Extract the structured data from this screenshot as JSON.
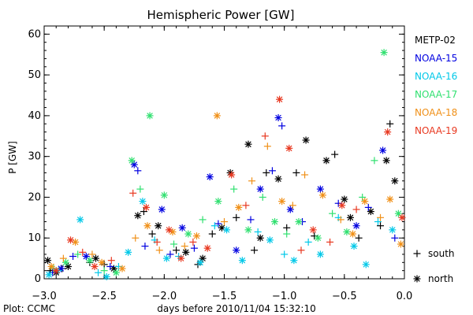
{
  "chart_data": {
    "type": "scatter",
    "title": "Hemispheric Power [GW]",
    "xlabel": "days before 2010/11/04 15:32:10",
    "ylabel": "P [GW]",
    "xlim": [
      -3.0,
      0.0
    ],
    "ylim": [
      0,
      62
    ],
    "xticks": [
      -3.0,
      -2.5,
      -2.0,
      -1.5,
      -1.0,
      -0.5,
      0.0
    ],
    "xtick_labels": [
      "−3.0",
      "−2.5",
      "−2.0",
      "−1.5",
      "−1.0",
      "−0.5",
      "0.0"
    ],
    "yticks": [
      0,
      10,
      20,
      30,
      40,
      50,
      60
    ],
    "footer": "Plot: CCMC",
    "marker_legend": [
      {
        "symbol": "+",
        "label": "south"
      },
      {
        "symbol": "*",
        "label": "north"
      }
    ],
    "series": [
      {
        "name": "METP-02",
        "color": "#000000",
        "points": [
          [
            -2.97,
            4.5,
            "*"
          ],
          [
            -2.95,
            2.0,
            "+"
          ],
          [
            -2.9,
            1.5,
            "*"
          ],
          [
            -2.85,
            2.5,
            "+"
          ],
          [
            -2.8,
            3.0,
            "*"
          ],
          [
            -2.62,
            4.0,
            "+"
          ],
          [
            -2.57,
            5.0,
            "*"
          ],
          [
            -2.5,
            3.5,
            "+"
          ],
          [
            -2.42,
            2.5,
            "*"
          ],
          [
            -2.22,
            15.5,
            "*"
          ],
          [
            -2.17,
            16.5,
            "+"
          ],
          [
            -2.1,
            11.0,
            "+"
          ],
          [
            -2.05,
            13.0,
            "*"
          ],
          [
            -1.9,
            7.0,
            "+"
          ],
          [
            -1.82,
            6.5,
            "*"
          ],
          [
            -1.72,
            3.5,
            "+"
          ],
          [
            -1.68,
            5.0,
            "*"
          ],
          [
            -1.6,
            11.0,
            "+"
          ],
          [
            -1.52,
            12.5,
            "*"
          ],
          [
            -1.45,
            26.0,
            "*"
          ],
          [
            -1.4,
            15.0,
            "+"
          ],
          [
            -1.3,
            33.0,
            "*"
          ],
          [
            -1.25,
            7.0,
            "+"
          ],
          [
            -1.2,
            10.0,
            "*"
          ],
          [
            -1.15,
            26.0,
            "+"
          ],
          [
            -1.05,
            24.5,
            "*"
          ],
          [
            -0.98,
            12.5,
            "+"
          ],
          [
            -0.9,
            26.0,
            "+"
          ],
          [
            -0.82,
            34.0,
            "*"
          ],
          [
            -0.75,
            10.5,
            "+"
          ],
          [
            -0.65,
            29.0,
            "*"
          ],
          [
            -0.58,
            30.5,
            "+"
          ],
          [
            -0.5,
            19.5,
            "*"
          ],
          [
            -0.45,
            15.0,
            "*"
          ],
          [
            -0.38,
            10.0,
            "+"
          ],
          [
            -0.28,
            16.5,
            "*"
          ],
          [
            -0.2,
            13.0,
            "+"
          ],
          [
            -0.15,
            29.0,
            "*"
          ],
          [
            -0.12,
            38.0,
            "+"
          ],
          [
            -0.08,
            24.0,
            "*"
          ]
        ]
      },
      {
        "name": "NOAA-15",
        "color": "#0000e0",
        "points": [
          [
            -2.93,
            1.5,
            "+"
          ],
          [
            -2.86,
            2.5,
            "*"
          ],
          [
            -2.76,
            5.5,
            "+"
          ],
          [
            -2.65,
            5.5,
            "*"
          ],
          [
            -2.45,
            3.0,
            "+"
          ],
          [
            -2.25,
            28.0,
            "*"
          ],
          [
            -2.22,
            26.5,
            "+"
          ],
          [
            -2.16,
            8.0,
            "+"
          ],
          [
            -2.02,
            17.0,
            "*"
          ],
          [
            -1.95,
            6.0,
            "+"
          ],
          [
            -1.85,
            12.5,
            "*"
          ],
          [
            -1.75,
            7.5,
            "+"
          ],
          [
            -1.62,
            25.0,
            "*"
          ],
          [
            -1.55,
            13.5,
            "+"
          ],
          [
            -1.4,
            7.0,
            "*"
          ],
          [
            -1.28,
            14.5,
            "+"
          ],
          [
            -1.2,
            22.0,
            "*"
          ],
          [
            -1.1,
            26.5,
            "+"
          ],
          [
            -1.05,
            39.5,
            "*"
          ],
          [
            -1.02,
            37.5,
            "+"
          ],
          [
            -0.95,
            17.0,
            "*"
          ],
          [
            -0.85,
            14.0,
            "+"
          ],
          [
            -0.7,
            22.0,
            "*"
          ],
          [
            -0.55,
            18.5,
            "+"
          ],
          [
            -0.4,
            13.0,
            "*"
          ],
          [
            -0.3,
            17.5,
            "+"
          ],
          [
            -0.18,
            31.5,
            "*"
          ],
          [
            -0.08,
            10.0,
            "+"
          ]
        ]
      },
      {
        "name": "NOAA-16",
        "color": "#00c8e8",
        "points": [
          [
            -2.96,
            1.0,
            "*"
          ],
          [
            -2.88,
            2.0,
            "+"
          ],
          [
            -2.7,
            14.5,
            "*"
          ],
          [
            -2.55,
            1.5,
            "+"
          ],
          [
            -2.48,
            0.5,
            "*"
          ],
          [
            -2.38,
            3.0,
            "+"
          ],
          [
            -2.3,
            6.5,
            "*"
          ],
          [
            -2.18,
            19.0,
            "*"
          ],
          [
            -2.08,
            9.5,
            "+"
          ],
          [
            -1.98,
            5.0,
            "*"
          ],
          [
            -1.88,
            5.5,
            "+"
          ],
          [
            -1.7,
            4.0,
            "*"
          ],
          [
            -1.58,
            13.0,
            "+"
          ],
          [
            -1.48,
            12.0,
            "*"
          ],
          [
            -1.35,
            4.5,
            "*"
          ],
          [
            -1.22,
            11.5,
            "+"
          ],
          [
            -1.12,
            9.5,
            "*"
          ],
          [
            -1.0,
            6.0,
            "+"
          ],
          [
            -0.92,
            4.5,
            "*"
          ],
          [
            -0.8,
            9.0,
            "+"
          ],
          [
            -0.7,
            6.0,
            "*"
          ],
          [
            -0.55,
            15.0,
            "+"
          ],
          [
            -0.42,
            8.0,
            "*"
          ],
          [
            -0.32,
            3.5,
            "*"
          ],
          [
            -0.22,
            14.0,
            "+"
          ],
          [
            -0.1,
            12.0,
            "*"
          ]
        ]
      },
      {
        "name": "NOAA-17",
        "color": "#30e070",
        "points": [
          [
            -2.92,
            2.5,
            "+"
          ],
          [
            -2.82,
            4.0,
            "*"
          ],
          [
            -2.72,
            6.0,
            "+"
          ],
          [
            -2.62,
            4.5,
            "*"
          ],
          [
            -2.5,
            2.0,
            "+"
          ],
          [
            -2.4,
            1.5,
            "*"
          ],
          [
            -2.27,
            29.0,
            "*"
          ],
          [
            -2.2,
            22.0,
            "+"
          ],
          [
            -2.12,
            40.0,
            "*"
          ],
          [
            -2.0,
            20.5,
            "*"
          ],
          [
            -1.92,
            8.5,
            "+"
          ],
          [
            -1.8,
            11.0,
            "*"
          ],
          [
            -1.68,
            14.5,
            "+"
          ],
          [
            -1.55,
            19.0,
            "*"
          ],
          [
            -1.42,
            22.0,
            "+"
          ],
          [
            -1.3,
            12.0,
            "*"
          ],
          [
            -1.18,
            20.0,
            "+"
          ],
          [
            -1.08,
            14.0,
            "*"
          ],
          [
            -0.98,
            11.0,
            "+"
          ],
          [
            -0.88,
            14.0,
            "*"
          ],
          [
            -0.72,
            10.0,
            "*"
          ],
          [
            -0.6,
            16.0,
            "+"
          ],
          [
            -0.48,
            11.5,
            "*"
          ],
          [
            -0.35,
            20.0,
            "+"
          ],
          [
            -0.25,
            29.0,
            "+"
          ],
          [
            -0.17,
            55.5,
            "*"
          ],
          [
            -0.05,
            16.0,
            "*"
          ]
        ]
      },
      {
        "name": "NOAA-18",
        "color": "#f09018",
        "points": [
          [
            -2.94,
            3.0,
            "*"
          ],
          [
            -2.84,
            5.0,
            "+"
          ],
          [
            -2.74,
            9.0,
            "*"
          ],
          [
            -2.6,
            6.0,
            "+"
          ],
          [
            -2.52,
            4.0,
            "*"
          ],
          [
            -2.35,
            2.5,
            "*"
          ],
          [
            -2.24,
            10.0,
            "+"
          ],
          [
            -2.14,
            13.0,
            "*"
          ],
          [
            -2.04,
            7.0,
            "+"
          ],
          [
            -1.93,
            11.5,
            "*"
          ],
          [
            -1.83,
            8.0,
            "+"
          ],
          [
            -1.73,
            10.5,
            "*"
          ],
          [
            -1.56,
            40.0,
            "*"
          ],
          [
            -1.5,
            14.0,
            "+"
          ],
          [
            -1.38,
            17.5,
            "*"
          ],
          [
            -1.27,
            24.0,
            "+"
          ],
          [
            -1.14,
            32.5,
            "+"
          ],
          [
            -1.02,
            19.0,
            "*"
          ],
          [
            -0.93,
            18.0,
            "+"
          ],
          [
            -0.83,
            25.5,
            "+"
          ],
          [
            -0.68,
            20.5,
            "*"
          ],
          [
            -0.53,
            14.5,
            "+"
          ],
          [
            -0.43,
            11.0,
            "*"
          ],
          [
            -0.33,
            19.0,
            "*"
          ],
          [
            -0.2,
            15.0,
            "+"
          ],
          [
            -0.12,
            19.5,
            "*"
          ],
          [
            -0.03,
            8.5,
            "*"
          ]
        ]
      },
      {
        "name": "NOAA-19",
        "color": "#e83820",
        "points": [
          [
            -2.9,
            2.0,
            "*"
          ],
          [
            -2.78,
            9.5,
            "*"
          ],
          [
            -2.68,
            6.5,
            "+"
          ],
          [
            -2.58,
            3.0,
            "*"
          ],
          [
            -2.44,
            4.5,
            "+"
          ],
          [
            -2.26,
            21.0,
            "+"
          ],
          [
            -2.15,
            17.5,
            "*"
          ],
          [
            -2.06,
            9.0,
            "+"
          ],
          [
            -1.96,
            12.0,
            "*"
          ],
          [
            -1.86,
            5.0,
            "*"
          ],
          [
            -1.76,
            9.0,
            "+"
          ],
          [
            -1.64,
            7.5,
            "*"
          ],
          [
            -1.44,
            25.5,
            "*"
          ],
          [
            -1.32,
            18.0,
            "+"
          ],
          [
            -1.16,
            35.0,
            "+"
          ],
          [
            -1.04,
            44.0,
            "*"
          ],
          [
            -0.96,
            32.0,
            "*"
          ],
          [
            -0.86,
            7.0,
            "+"
          ],
          [
            -0.76,
            12.0,
            "*"
          ],
          [
            -0.62,
            9.0,
            "+"
          ],
          [
            -0.52,
            18.0,
            "*"
          ],
          [
            -0.4,
            17.0,
            "+"
          ],
          [
            -0.14,
            36.0,
            "*"
          ],
          [
            -0.02,
            15.0,
            "*"
          ]
        ]
      }
    ]
  }
}
